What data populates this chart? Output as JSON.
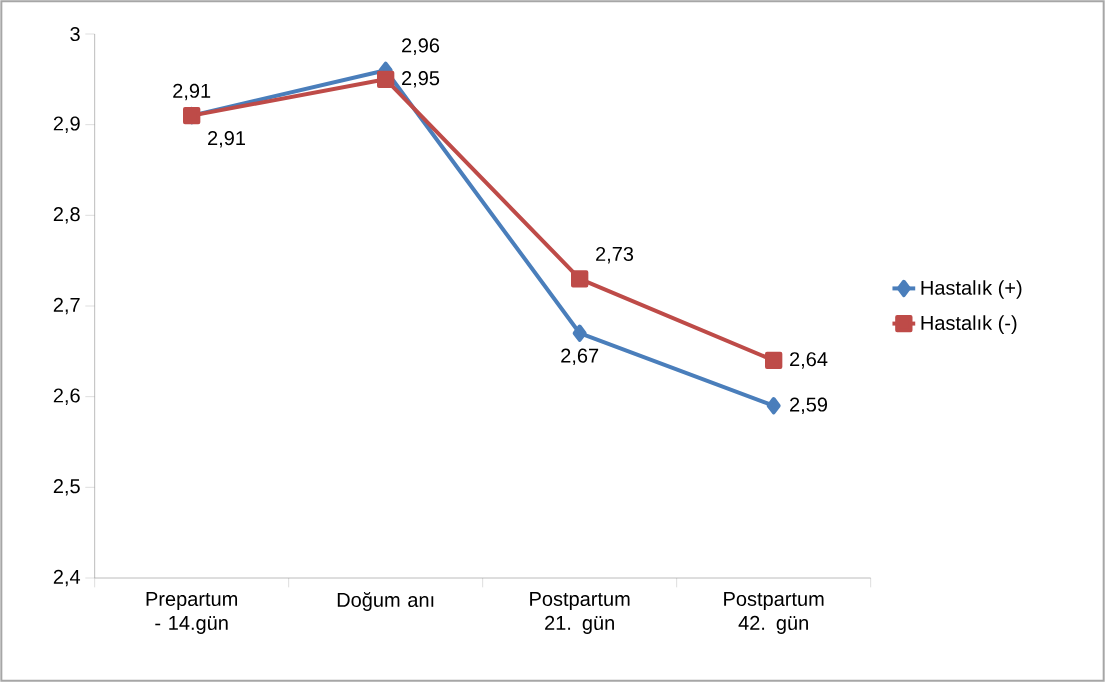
{
  "chart_data": {
    "type": "line",
    "categories": [
      "Prepartum - 14.gün",
      "Doğum anı",
      "Postpartum 21. gün",
      "Postpartum 42. gün"
    ],
    "series": [
      {
        "name": "Hastalık (+)",
        "color": "#4a7ebb",
        "marker": "diamond",
        "values": [
          2.91,
          2.96,
          2.67,
          2.59
        ],
        "value_labels": [
          "2,91",
          "2,96",
          "2,67",
          "2,59"
        ]
      },
      {
        "name": "Hastalık (-)",
        "color": "#be4b48",
        "marker": "square",
        "values": [
          2.91,
          2.95,
          2.73,
          2.64
        ],
        "value_labels": [
          "2,91",
          "2,95",
          "2,73",
          "2,64"
        ]
      }
    ],
    "ylim": [
      2.4,
      3.0
    ],
    "yticks": [
      {
        "value": 2.4,
        "label": "2,4"
      },
      {
        "value": 2.5,
        "label": "2,5"
      },
      {
        "value": 2.6,
        "label": "2,6"
      },
      {
        "value": 2.7,
        "label": "2,7"
      },
      {
        "value": 2.8,
        "label": "2,8"
      },
      {
        "value": 2.9,
        "label": "2,9"
      },
      3
    ],
    "grid": false,
    "legend": "right",
    "line_style": "solid"
  }
}
